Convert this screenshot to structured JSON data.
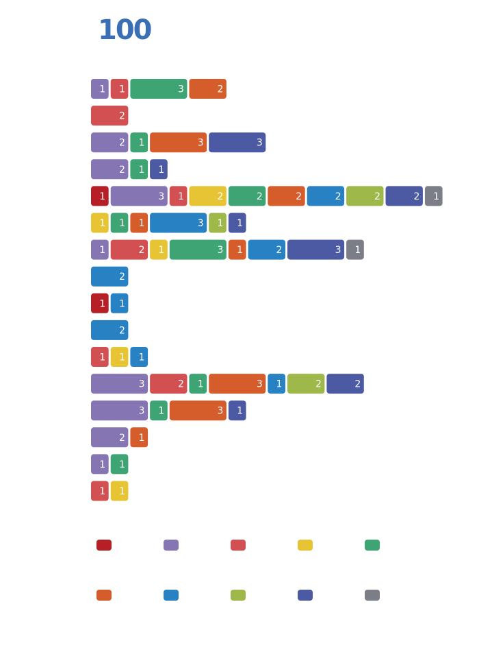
{
  "title": "100",
  "colors": {
    "c1": "#b61f25",
    "c2": "#8575b3",
    "c3": "#d35052",
    "c4": "#e6c433",
    "c5": "#3ea474",
    "c6": "#d45d2b",
    "c7": "#2881c2",
    "c8": "#9fb84a",
    "c9": "#4c5aa3",
    "c10": "#7b7e86"
  },
  "chart_data": {
    "type": "bar",
    "orientation": "horizontal",
    "stacked": true,
    "legend": {
      "placement": "bottom",
      "colors": [
        "c1",
        "c2",
        "c3",
        "c4",
        "c5",
        "c6",
        "c7",
        "c8",
        "c9",
        "c10"
      ]
    },
    "rows": [
      [
        [
          "c2",
          1
        ],
        [
          "c3",
          1
        ],
        [
          "c5",
          3
        ],
        [
          "c6",
          2
        ]
      ],
      [
        [
          "c3",
          2
        ]
      ],
      [
        [
          "c2",
          2
        ],
        [
          "c5",
          1
        ],
        [
          "c6",
          3
        ],
        [
          "c9",
          3
        ]
      ],
      [
        [
          "c2",
          2
        ],
        [
          "c5",
          1
        ],
        [
          "c9",
          1
        ]
      ],
      [
        [
          "c1",
          1
        ],
        [
          "c2",
          3
        ],
        [
          "c3",
          1
        ],
        [
          "c4",
          2
        ],
        [
          "c5",
          2
        ],
        [
          "c6",
          2
        ],
        [
          "c7",
          2
        ],
        [
          "c8",
          2
        ],
        [
          "c9",
          2
        ],
        [
          "c10",
          1
        ]
      ],
      [
        [
          "c4",
          1
        ],
        [
          "c5",
          1
        ],
        [
          "c6",
          1
        ],
        [
          "c7",
          3
        ],
        [
          "c8",
          1
        ],
        [
          "c9",
          1
        ]
      ],
      [
        [
          "c2",
          1
        ],
        [
          "c3",
          2
        ],
        [
          "c4",
          1
        ],
        [
          "c5",
          3
        ],
        [
          "c6",
          1
        ],
        [
          "c7",
          2
        ],
        [
          "c9",
          3
        ],
        [
          "c10",
          1
        ]
      ],
      [
        [
          "c7",
          2
        ]
      ],
      [
        [
          "c1",
          1
        ],
        [
          "c7",
          1
        ]
      ],
      [
        [
          "c7",
          2
        ]
      ],
      [
        [
          "c3",
          1
        ],
        [
          "c4",
          1
        ],
        [
          "c7",
          1
        ]
      ],
      [
        [
          "c2",
          3
        ],
        [
          "c3",
          2
        ],
        [
          "c5",
          1
        ],
        [
          "c6",
          3
        ],
        [
          "c7",
          1
        ],
        [
          "c8",
          2
        ],
        [
          "c9",
          2
        ]
      ],
      [
        [
          "c2",
          3
        ],
        [
          "c5",
          1
        ],
        [
          "c6",
          3
        ],
        [
          "c9",
          1
        ]
      ],
      [
        [
          "c2",
          2
        ],
        [
          "c6",
          1
        ]
      ],
      [
        [
          "c2",
          1
        ],
        [
          "c5",
          1
        ]
      ],
      [
        [
          "c3",
          1
        ],
        [
          "c4",
          1
        ]
      ]
    ]
  }
}
